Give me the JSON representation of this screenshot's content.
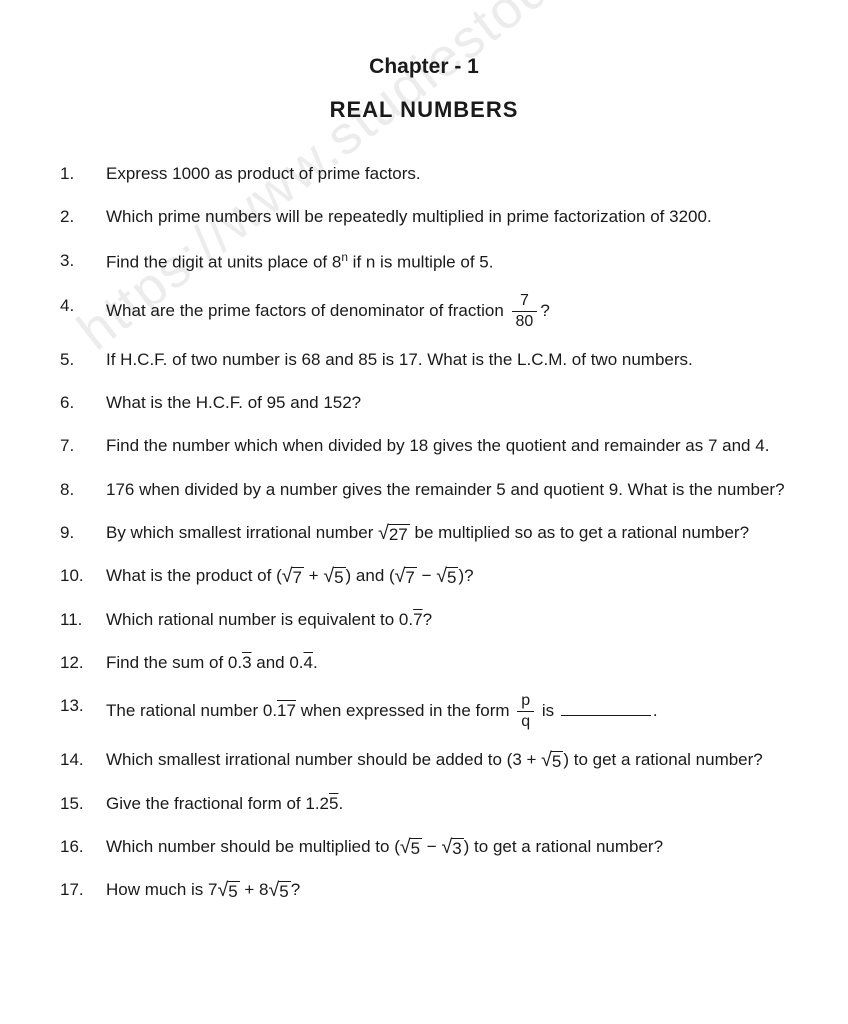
{
  "chapter": {
    "label": "Chapter - 1",
    "title": "REAL NUMBERS"
  },
  "watermark": "https://www.studiestoday.com",
  "questions": {
    "q1": {
      "num": "1.",
      "text": "Express 1000 as product of prime factors."
    },
    "q2": {
      "num": "2.",
      "text": "Which prime numbers will be repeatedly multiplied in prime factorization of 3200."
    },
    "q3": {
      "num": "3.",
      "pre": "Find the digit at units place of 8",
      "sup": "n",
      "post": " if n is multiple of 5."
    },
    "q4": {
      "num": "4.",
      "pre": "What are the prime factors of denominator of fraction ",
      "frac_num": "7",
      "frac_den": "80",
      "post": "?"
    },
    "q5": {
      "num": "5.",
      "text": "If H.C.F. of two number is 68 and 85 is 17. What is the L.C.M. of two numbers."
    },
    "q6": {
      "num": "6.",
      "text": "What is the H.C.F. of 95 and 152?"
    },
    "q7": {
      "num": "7.",
      "text": "Find the number which when divided by 18 gives the quotient and remainder as 7 and 4."
    },
    "q8": {
      "num": "8.",
      "text": "176 when divided by a number gives the remainder 5 and quotient 9. What is the number?"
    },
    "q9": {
      "num": "9.",
      "pre": "By which smallest irrational number ",
      "rad": "27",
      "post": " be multiplied so as to get a rational number?"
    },
    "q10": {
      "num": "10.",
      "pre": "What is the product of (",
      "r1": "7",
      "mid1": " + ",
      "r2": "5",
      "mid2": ") and (",
      "r3": "7",
      "mid3": " − ",
      "r4": "5",
      "post": ")?"
    },
    "q11": {
      "num": "11.",
      "pre": "Which rational number is equivalent to 0.",
      "bar": "7",
      "post": "?"
    },
    "q12": {
      "num": "12.",
      "pre": "Find the sum of 0.",
      "bar1": "3",
      "mid": " and 0.",
      "bar2": "4",
      "post": "."
    },
    "q13": {
      "num": "13.",
      "pre": "The rational number 0.",
      "bar": "17",
      "mid": " when expressed in the form ",
      "frac_num": "p",
      "frac_den": "q",
      "post": " is ",
      "tail": "."
    },
    "q14": {
      "num": "14.",
      "pre": "Which smallest irrational number should be added to (3 + ",
      "rad": "5",
      "post": ") to get a rational number?"
    },
    "q15": {
      "num": "15.",
      "pre": "Give the fractional form of 1.2",
      "bar": "5",
      "post": "."
    },
    "q16": {
      "num": "16.",
      "pre": "Which number should be multiplied to (",
      "r1": "5",
      "mid": " − ",
      "r2": "3",
      "post": ") to get a rational number?"
    },
    "q17": {
      "num": "17.",
      "pre": "How much is 7",
      "r1": "5",
      "mid": " + 8",
      "r2": "5",
      "post": "?"
    }
  },
  "style": {
    "background_color": "#ffffff",
    "text_color": "#1a1a1a",
    "watermark_color": "#ececec",
    "font_family": "Arial, Helvetica, sans-serif",
    "body_fontsize": 17,
    "chapter_label_fontsize": 21,
    "chapter_title_fontsize": 22,
    "watermark_fontsize": 54,
    "watermark_angle_deg": -38
  }
}
